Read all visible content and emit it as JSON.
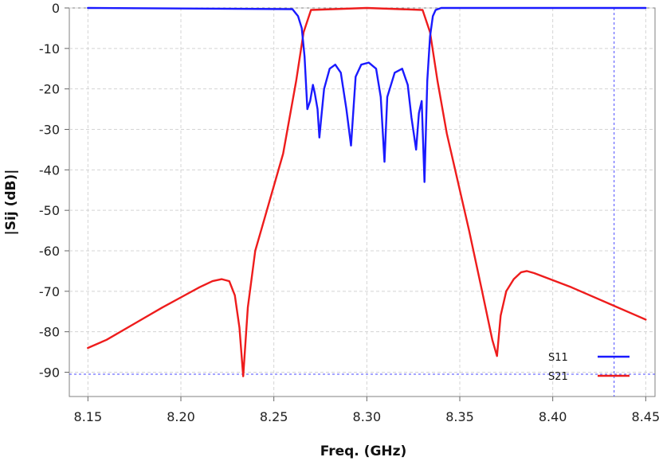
{
  "chart_data": {
    "type": "line",
    "title": "",
    "xlabel": "Freq. (GHz)",
    "ylabel": "|Sij (dB)|",
    "xlim": [
      8.14,
      8.455
    ],
    "ylim": [
      -96,
      0
    ],
    "x_ticks": [
      "8.15",
      "8.20",
      "8.25",
      "8.30",
      "8.35",
      "8.40",
      "8.45"
    ],
    "y_ticks": [
      "0",
      "-10",
      "-20",
      "-30",
      "-40",
      "-50",
      "-60",
      "-70",
      "-80",
      "-90"
    ],
    "grid": true,
    "legend_position": "bottom-right",
    "markers": {
      "x": 8.433,
      "y": -90.5
    },
    "series": [
      {
        "name": "S11",
        "color": "#1a1aff",
        "x": [
          8.15,
          8.26,
          8.263,
          8.265,
          8.2665,
          8.268,
          8.2695,
          8.271,
          8.272,
          8.2735,
          8.2745,
          8.2755,
          8.277,
          8.28,
          8.283,
          8.286,
          8.289,
          8.2915,
          8.294,
          8.297,
          8.301,
          8.305,
          8.3075,
          8.3095,
          8.311,
          8.315,
          8.319,
          8.322,
          8.324,
          8.3265,
          8.328,
          8.3295,
          8.331,
          8.3325,
          8.334,
          8.3355,
          8.337,
          8.34,
          8.45
        ],
        "y": [
          0,
          -0.3,
          -2,
          -5,
          -12,
          -25,
          -23,
          -19,
          -21,
          -25,
          -32,
          -27,
          -20,
          -15,
          -14,
          -16,
          -25,
          -34,
          -17,
          -14,
          -13.5,
          -15,
          -22,
          -38,
          -22,
          -16,
          -15,
          -19,
          -27,
          -35,
          -26,
          -23,
          -43,
          -18,
          -7,
          -2,
          -0.5,
          0,
          0
        ]
      },
      {
        "name": "S21",
        "color": "#ee1c1c",
        "x": [
          8.15,
          8.16,
          8.175,
          8.19,
          8.2,
          8.21,
          8.217,
          8.222,
          8.226,
          8.229,
          8.2315,
          8.2335,
          8.236,
          8.24,
          8.245,
          8.255,
          8.262,
          8.266,
          8.27,
          8.3,
          8.33,
          8.334,
          8.338,
          8.343,
          8.355,
          8.362,
          8.3675,
          8.37,
          8.372,
          8.375,
          8.379,
          8.383,
          8.386,
          8.39,
          8.41,
          8.43,
          8.445,
          8.45
        ],
        "y": [
          -84,
          -82,
          -78,
          -74,
          -71.5,
          -69,
          -67.5,
          -67,
          -67.5,
          -71,
          -79,
          -91,
          -74,
          -60,
          -52,
          -36,
          -18,
          -6,
          -0.5,
          0,
          -0.5,
          -6,
          -18,
          -31,
          -55,
          -70,
          -82,
          -86,
          -76,
          -70,
          -67,
          -65.3,
          -65,
          -65.5,
          -69,
          -73,
          -76,
          -77
        ]
      }
    ]
  }
}
